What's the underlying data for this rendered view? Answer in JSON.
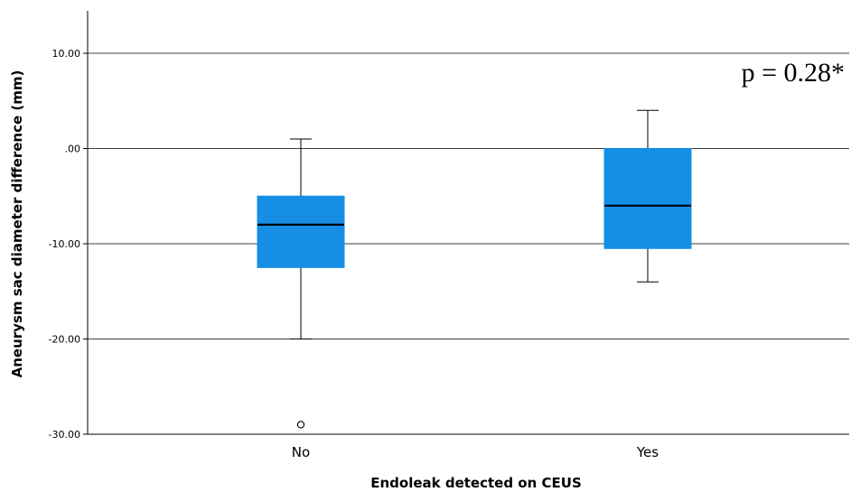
{
  "chart_data": {
    "type": "boxplot",
    "xlabel": "Endoleak detected on CEUS",
    "ylabel": "Aneurysm sac diameter difference (mm)",
    "ylim": [
      -30,
      14.5
    ],
    "yticks": [
      -30,
      -20,
      -10,
      0,
      10
    ],
    "ytick_labels": [
      "-30.00",
      "-20.00",
      "-10.00",
      ".00",
      "10.00"
    ],
    "grid": true,
    "box_color": "#168ee6",
    "annotation": "p = 0.28*",
    "categories": [
      "No",
      "Yes"
    ],
    "boxes": [
      {
        "category": "No",
        "whisker_low": -20,
        "q1": -12.5,
        "median": -8,
        "q3": -5,
        "whisker_high": 1,
        "outliers": [
          -29
        ]
      },
      {
        "category": "Yes",
        "whisker_low": -14,
        "q1": -10.5,
        "median": -6,
        "q3": 0,
        "whisker_high": 4,
        "outliers": []
      }
    ]
  }
}
